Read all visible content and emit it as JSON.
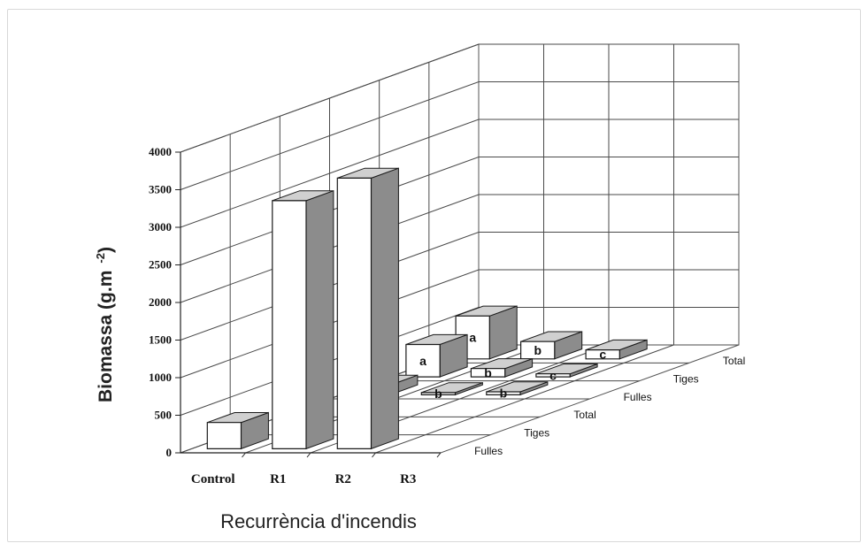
{
  "chart_data": {
    "type": "bar",
    "variant": "3d-bar",
    "title": "",
    "ylabel": "Biomassa (g.m -2)",
    "ylabel_main": "Biomassa (g.m",
    "ylabel_sup": "-2",
    "ylabel_close": ")",
    "xlabel": "Recurrència d'incendis",
    "ylim": [
      0,
      4000
    ],
    "yticks": [
      0,
      500,
      1000,
      1500,
      2000,
      2500,
      3000,
      3500,
      4000
    ],
    "categories": [
      "Control",
      "R1",
      "R2",
      "R3"
    ],
    "depth_categories": [
      "Fulles",
      "Tiges",
      "Total",
      "Fulles",
      "Tiges",
      "Total"
    ],
    "grid": true,
    "legend": "none",
    "bar_colors": {
      "front": "#ffffff",
      "top": "#d0d0d0",
      "side": "#8c8c8c",
      "stroke": "#1a1a1a"
    },
    "bars": [
      {
        "category": "Control",
        "depth": 0,
        "value": 350,
        "label": ""
      },
      {
        "category": "R1",
        "depth": 0,
        "value": 3300,
        "label": ""
      },
      {
        "category": "R2",
        "depth": 0,
        "value": 3600,
        "label": ""
      },
      {
        "category": "Control",
        "depth": 3,
        "value": 130,
        "label": "a"
      },
      {
        "category": "Control",
        "depth": 4,
        "value": 430,
        "label": "a"
      },
      {
        "category": "Control",
        "depth": 5,
        "value": 570,
        "label": "a"
      },
      {
        "category": "R1",
        "depth": 3,
        "value": 30,
        "label": "b"
      },
      {
        "category": "R1",
        "depth": 4,
        "value": 110,
        "label": "b"
      },
      {
        "category": "R1",
        "depth": 5,
        "value": 230,
        "label": "b"
      },
      {
        "category": "R2",
        "depth": 3,
        "value": 40,
        "label": "b"
      },
      {
        "category": "R2",
        "depth": 4,
        "value": 40,
        "label": "c"
      },
      {
        "category": "R2",
        "depth": 5,
        "value": 120,
        "label": "c"
      }
    ]
  }
}
